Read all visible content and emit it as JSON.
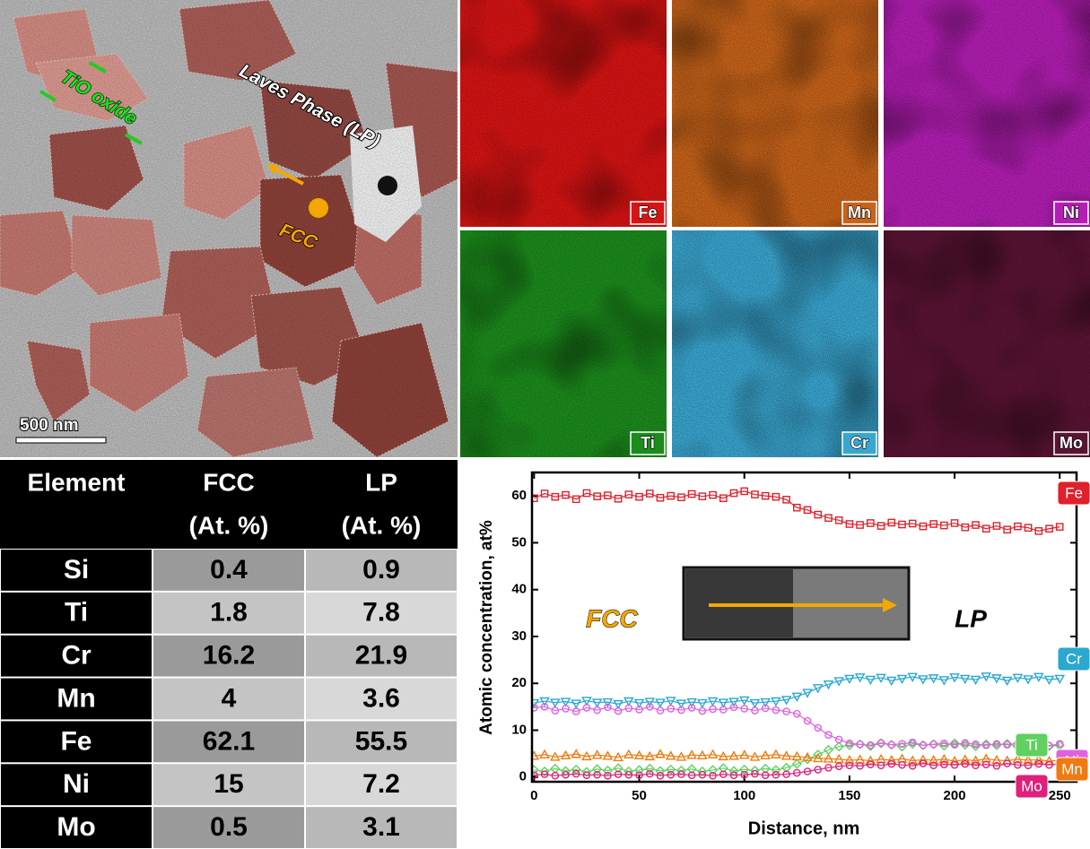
{
  "micrograph": {
    "labels": [
      "TiO oxide",
      "Laves Phase (LP)",
      "FCC"
    ],
    "scale_bar": "500 nm"
  },
  "maps": [
    {
      "label": "Fe",
      "color": "#d81414"
    },
    {
      "label": "Mn",
      "color": "#c8641a"
    },
    {
      "label": "Ni",
      "color": "#b41eb4"
    },
    {
      "label": "Ti",
      "color": "#1c8c1c"
    },
    {
      "label": "Cr",
      "color": "#3aa6d0"
    },
    {
      "label": "Mo",
      "color": "#5a1434"
    }
  ],
  "table": {
    "header": [
      [
        "Element"
      ],
      [
        "FCC",
        "(At. %)"
      ],
      [
        "LP",
        "(At. %)"
      ]
    ],
    "rows": [
      [
        "Si",
        0.4,
        0.9
      ],
      [
        "Ti",
        1.8,
        7.8
      ],
      [
        "Cr",
        16.2,
        21.9
      ],
      [
        "Mn",
        4,
        3.6
      ],
      [
        "Fe",
        62.1,
        55.5
      ],
      [
        "Ni",
        15,
        7.2
      ],
      [
        "Mo",
        0.5,
        3.1
      ]
    ]
  },
  "chart_data": {
    "type": "line",
    "x_label": "Distance, nm",
    "y_label": "Atomic concentration, at%",
    "annotations": [
      "FCC",
      "LP"
    ],
    "xlim": [
      -1,
      258
    ],
    "ylim": [
      -1,
      65
    ],
    "xticks": [
      0,
      50,
      100,
      150,
      200,
      250
    ],
    "yticks": [
      0,
      10,
      20,
      30,
      40,
      50,
      60
    ],
    "x": [
      0,
      5,
      10,
      15,
      20,
      25,
      30,
      35,
      40,
      45,
      50,
      55,
      60,
      65,
      70,
      75,
      80,
      85,
      90,
      95,
      100,
      105,
      110,
      115,
      120,
      125,
      130,
      135,
      140,
      145,
      150,
      155,
      160,
      165,
      170,
      175,
      180,
      185,
      190,
      195,
      200,
      205,
      210,
      215,
      220,
      225,
      230,
      235,
      240,
      245,
      250
    ],
    "series": [
      {
        "name": "Fe",
        "color": "#e0202a",
        "marker": "square",
        "values": [
          59.5,
          60.5,
          59.8,
          60.2,
          59.3,
          60.6,
          59.9,
          60.1,
          59.4,
          60.3,
          59.8,
          60.5,
          59.6,
          60.0,
          59.7,
          60.4,
          59.9,
          60.2,
          59.5,
          60.6,
          61.0,
          60.3,
          60.0,
          59.8,
          59.2,
          57.5,
          57.0,
          56.0,
          55.3,
          54.8,
          54.0,
          53.8,
          54.2,
          53.6,
          54.3,
          53.9,
          54.1,
          53.5,
          54.0,
          53.7,
          54.2,
          53.3,
          53.8,
          53.0,
          53.6,
          52.8,
          53.5,
          53.2,
          52.5,
          53.0,
          53.4
        ]
      },
      {
        "name": "Cr",
        "color": "#2aa8d0",
        "marker": "tri-down",
        "values": [
          15.8,
          16.2,
          15.9,
          16.1,
          15.7,
          16.3,
          15.9,
          16.0,
          15.6,
          16.2,
          15.8,
          16.1,
          15.9,
          16.3,
          15.7,
          16.0,
          15.8,
          16.2,
          15.9,
          16.1,
          16.4,
          15.8,
          16.0,
          16.2,
          16.5,
          17.2,
          18.0,
          19.0,
          19.8,
          20.5,
          21.0,
          21.3,
          20.8,
          21.2,
          20.6,
          21.0,
          21.4,
          20.9,
          21.1,
          20.7,
          21.3,
          21.0,
          20.8,
          21.5,
          21.1,
          20.6,
          21.2,
          20.9,
          21.4,
          20.8,
          21.0
        ]
      },
      {
        "name": "Ti",
        "color": "#60d060",
        "marker": "diamond",
        "values": [
          1.5,
          1.2,
          1.8,
          1.3,
          1.6,
          1.1,
          1.7,
          1.4,
          1.9,
          1.2,
          1.5,
          1.8,
          1.3,
          1.6,
          1.4,
          1.7,
          1.2,
          1.5,
          1.9,
          1.3,
          1.6,
          1.4,
          1.8,
          1.5,
          2.0,
          2.8,
          3.8,
          4.8,
          5.8,
          6.5,
          6.8,
          7.0,
          6.6,
          7.2,
          6.9,
          6.5,
          7.1,
          6.8,
          7.0,
          6.7,
          7.2,
          6.9,
          6.6,
          7.0,
          6.8,
          7.1,
          6.5,
          6.9,
          7.0,
          6.6,
          6.8
        ]
      },
      {
        "name": "Ni",
        "color": "#e060e0",
        "marker": "circle",
        "values": [
          14.8,
          15.0,
          14.2,
          14.6,
          14.0,
          14.8,
          14.3,
          14.9,
          14.1,
          14.7,
          14.4,
          15.0,
          14.2,
          14.6,
          14.3,
          14.8,
          14.1,
          14.5,
          14.4,
          14.9,
          14.6,
          14.2,
          14.7,
          14.3,
          14.0,
          13.5,
          12.0,
          10.5,
          9.0,
          8.0,
          7.2,
          7.0,
          6.8,
          7.3,
          6.9,
          7.1,
          7.4,
          6.8,
          7.0,
          7.2,
          6.9,
          7.3,
          7.0,
          6.8,
          7.1,
          6.9,
          7.2,
          6.8,
          7.0,
          6.7,
          7.1
        ]
      },
      {
        "name": "Mn",
        "color": "#f07a10",
        "marker": "tri-up",
        "values": [
          4.5,
          4.8,
          4.3,
          4.6,
          4.9,
          4.4,
          4.7,
          4.5,
          4.2,
          4.8,
          4.6,
          4.4,
          4.9,
          4.5,
          4.3,
          4.7,
          4.6,
          4.8,
          4.4,
          4.5,
          4.7,
          4.3,
          4.6,
          4.8,
          4.5,
          4.4,
          4.2,
          4.0,
          3.9,
          3.8,
          3.6,
          3.7,
          3.5,
          3.8,
          3.6,
          3.9,
          3.5,
          3.7,
          3.6,
          3.8,
          3.4,
          3.7,
          3.5,
          3.9,
          3.6,
          3.5,
          3.8,
          3.6,
          3.7,
          3.4,
          3.6
        ]
      },
      {
        "name": "Mo",
        "color": "#e0207a",
        "marker": "circle",
        "values": [
          0.4,
          0.6,
          0.3,
          0.5,
          0.7,
          0.4,
          0.5,
          0.3,
          0.6,
          0.5,
          0.4,
          0.7,
          0.3,
          0.5,
          0.6,
          0.4,
          0.5,
          0.3,
          0.6,
          0.4,
          0.5,
          0.7,
          0.4,
          0.5,
          0.6,
          0.9,
          1.2,
          1.6,
          2.0,
          2.3,
          2.5,
          2.4,
          2.7,
          2.5,
          2.8,
          2.6,
          2.4,
          2.9,
          2.5,
          2.7,
          2.6,
          2.8,
          2.5,
          2.7,
          2.4,
          2.9,
          2.6,
          2.5,
          2.8,
          2.6,
          2.7
        ]
      }
    ]
  }
}
